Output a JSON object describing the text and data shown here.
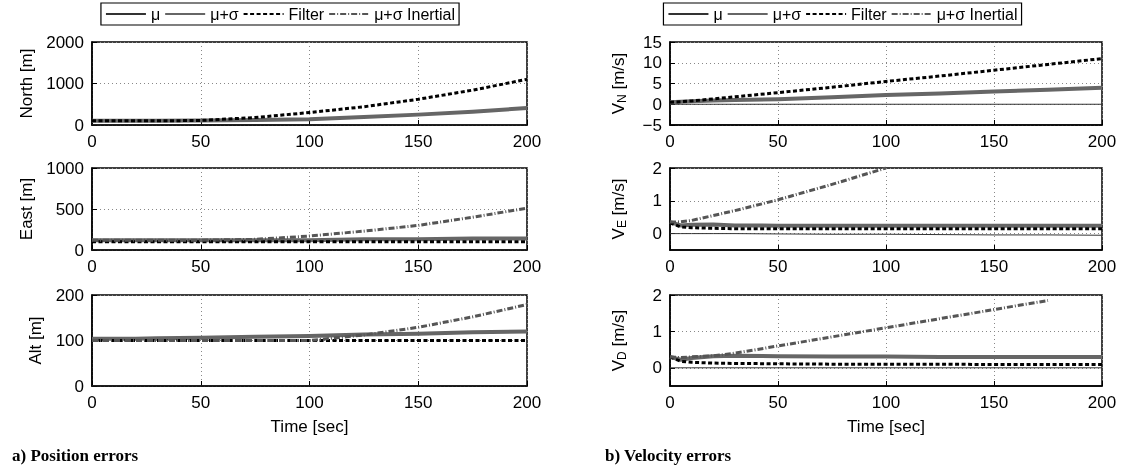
{
  "chart_data": [
    {
      "type": "line",
      "ylabel": "North [m]",
      "x": [
        0,
        5,
        10,
        20,
        30,
        50,
        75,
        100,
        125,
        150,
        175,
        200
      ],
      "xlim": [
        0,
        200
      ],
      "xticks": [
        0,
        50,
        100,
        150,
        200
      ],
      "ylim": [
        0,
        2000
      ],
      "yticks": [
        0,
        1000,
        2000
      ],
      "grid": true,
      "legend": "top",
      "marker": "none",
      "series": [
        {
          "name": "μ",
          "color": "#333333",
          "line_style": "solid",
          "values": [
            0,
            0,
            0,
            0,
            0,
            0,
            0,
            0,
            0,
            0,
            0,
            0
          ]
        },
        {
          "name": "μ+σ",
          "color": "#666666",
          "line_style": "solid",
          "values": [
            100,
            100,
            100,
            100,
            100,
            110,
            120,
            140,
            190,
            250,
            320,
            410
          ]
        },
        {
          "name": "Filter",
          "color": "#000000",
          "line_style": "dashed",
          "values": [
            100,
            100,
            100,
            100,
            100,
            110,
            180,
            300,
            440,
            620,
            840,
            1100
          ]
        },
        {
          "name": "μ+σ Inertial",
          "color": "#555555",
          "line_style": "dashdot",
          "values": [
            null,
            null,
            null,
            null,
            null,
            null,
            null,
            null,
            null,
            null,
            null,
            null
          ]
        }
      ]
    },
    {
      "type": "line",
      "ylabel": "East [m]",
      "x": [
        0,
        5,
        10,
        20,
        30,
        50,
        75,
        100,
        125,
        150,
        175,
        200
      ],
      "xlim": [
        0,
        200
      ],
      "xticks": [
        0,
        50,
        100,
        150,
        200
      ],
      "ylim": [
        0,
        1000
      ],
      "yticks": [
        0,
        500,
        1000
      ],
      "grid": true,
      "marker": "none",
      "series": [
        {
          "color": "#333333",
          "line_style": "solid",
          "values": [
            0,
            0,
            0,
            0,
            0,
            0,
            0,
            0,
            0,
            0,
            0,
            0
          ]
        },
        {
          "color": "#666666",
          "line_style": "solid",
          "values": [
            120,
            120,
            120,
            120,
            120,
            120,
            120,
            120,
            130,
            130,
            140,
            140
          ]
        },
        {
          "color": "#000000",
          "line_style": "dashed",
          "values": [
            100,
            100,
            100,
            100,
            100,
            100,
            100,
            100,
            100,
            100,
            100,
            100
          ]
        },
        {
          "color": "#555555",
          "line_style": "dashdot",
          "values": [
            120,
            120,
            120,
            120,
            120,
            120,
            130,
            170,
            230,
            300,
            400,
            510
          ]
        }
      ]
    },
    {
      "type": "line",
      "ylabel": "Alt [m]",
      "xlabel": "Time [sec]",
      "x": [
        0,
        5,
        10,
        20,
        30,
        50,
        75,
        100,
        125,
        150,
        175,
        200
      ],
      "xlim": [
        0,
        200
      ],
      "xticks": [
        0,
        50,
        100,
        150,
        200
      ],
      "ylim": [
        0,
        200
      ],
      "yticks": [
        0,
        100,
        200
      ],
      "grid": true,
      "marker": "none",
      "annotations": [
        "a) Position errors"
      ],
      "series": [
        {
          "color": "#333333",
          "line_style": "solid",
          "values": [
            0,
            0,
            0,
            0,
            0,
            0,
            0,
            0,
            0,
            0,
            0,
            0
          ]
        },
        {
          "color": "#666666",
          "line_style": "solid",
          "values": [
            104,
            104,
            104,
            104,
            105,
            106,
            108,
            110,
            113,
            115,
            118,
            120
          ]
        },
        {
          "color": "#000000",
          "line_style": "dashed",
          "values": [
            100,
            100,
            100,
            100,
            100,
            100,
            100,
            100,
            100,
            100,
            100,
            100
          ]
        },
        {
          "color": "#555555",
          "line_style": "dashdot",
          "values": [
            100,
            100,
            100,
            100,
            100,
            100,
            100,
            100,
            112,
            129,
            152,
            179
          ]
        }
      ]
    },
    {
      "type": "line",
      "ylabel": "V$_{N}$ [m/s]",
      "x": [
        0,
        5,
        10,
        20,
        30,
        50,
        75,
        100,
        125,
        150,
        175,
        200
      ],
      "xlim": [
        0,
        200
      ],
      "xticks": [
        0,
        50,
        100,
        150,
        200
      ],
      "ylim": [
        -5,
        15
      ],
      "yticks": [
        -5,
        0,
        5,
        10,
        15
      ],
      "grid": true,
      "legend": "top",
      "marker": "none",
      "series": [
        {
          "name": "μ",
          "color": "#333333",
          "line_style": "solid",
          "values": [
            0,
            0,
            0,
            0,
            0,
            0,
            0,
            0,
            0,
            0,
            0,
            0
          ]
        },
        {
          "name": "μ+σ",
          "color": "#666666",
          "line_style": "solid",
          "values": [
            0.5,
            0.6,
            0.7,
            0.9,
            1.0,
            1.2,
            1.7,
            2.2,
            2.6,
            3.1,
            3.5,
            4.0
          ]
        },
        {
          "name": "Filter",
          "color": "#000000",
          "line_style": "dashed",
          "values": [
            0.5,
            0.6,
            0.8,
            1.3,
            1.8,
            2.8,
            4.1,
            5.5,
            6.8,
            8.2,
            9.6,
            11
          ]
        },
        {
          "name": "μ+σ Inertial",
          "color": "#555555",
          "line_style": "dashdot",
          "values": [
            null,
            null,
            null,
            null,
            null,
            null,
            null,
            null,
            null,
            null,
            null,
            null
          ]
        }
      ]
    },
    {
      "type": "line",
      "ylabel": "V$_{E}$ [m/s]",
      "x": [
        0,
        5,
        10,
        20,
        30,
        50,
        75,
        100,
        125,
        150,
        175,
        200
      ],
      "xlim": [
        0,
        200
      ],
      "xticks": [
        0,
        50,
        100,
        150,
        200
      ],
      "ylim": [
        -0.5,
        2
      ],
      "yticks": [
        0,
        1,
        2
      ],
      "grid": true,
      "marker": "none",
      "series": [
        {
          "color": "#333333",
          "line_style": "solid",
          "values": [
            0,
            0,
            0,
            0,
            0,
            -0.01,
            -0.02,
            -0.02,
            -0.03,
            -0.04,
            -0.04,
            -0.05
          ]
        },
        {
          "color": "#666666",
          "line_style": "solid",
          "values": [
            0.35,
            0.25,
            0.27,
            0.28,
            0.25,
            0.24,
            0.24,
            0.24,
            0.24,
            0.24,
            0.24,
            0.24
          ]
        },
        {
          "color": "#000000",
          "line_style": "dashed",
          "values": [
            0.33,
            0.2,
            0.18,
            0.16,
            0.15,
            0.15,
            0.15,
            0.15,
            0.15,
            0.15,
            0.15,
            0.15
          ]
        },
        {
          "color": "#555555",
          "line_style": "dashdot",
          "values": [
            0.35,
            0.36,
            0.4,
            0.55,
            0.7,
            1.03,
            1.5,
            2.0,
            null,
            null,
            null,
            null
          ]
        }
      ]
    },
    {
      "type": "line",
      "ylabel": "V$_{D}$ [m/s]",
      "xlabel": "Time [sec]",
      "x": [
        0,
        5,
        10,
        20,
        30,
        50,
        75,
        100,
        125,
        150,
        175,
        200
      ],
      "xlim": [
        0,
        200
      ],
      "xticks": [
        0,
        50,
        100,
        150,
        200
      ],
      "ylim": [
        -0.5,
        2
      ],
      "yticks": [
        0,
        1,
        2
      ],
      "grid": true,
      "marker": "none",
      "annotations": [
        "b) Velocity errors"
      ],
      "series": [
        {
          "color": "#333333",
          "line_style": "solid",
          "values": [
            0,
            0,
            0,
            0,
            0,
            0,
            0,
            0,
            0,
            0,
            0,
            0
          ]
        },
        {
          "color": "#666666",
          "line_style": "solid",
          "values": [
            0.3,
            0.22,
            0.27,
            0.32,
            0.33,
            0.32,
            0.31,
            0.31,
            0.3,
            0.3,
            0.3,
            0.3
          ]
        },
        {
          "color": "#000000",
          "line_style": "dashed",
          "values": [
            0.3,
            0.18,
            0.15,
            0.13,
            0.12,
            0.11,
            0.1,
            0.1,
            0.1,
            0.09,
            0.09,
            0.09
          ]
        },
        {
          "color": "#555555",
          "line_style": "dashdot",
          "values": [
            0.3,
            0.28,
            0.3,
            0.33,
            0.4,
            0.6,
            0.85,
            1.1,
            1.35,
            1.6,
            1.85,
            null
          ]
        }
      ]
    }
  ]
}
